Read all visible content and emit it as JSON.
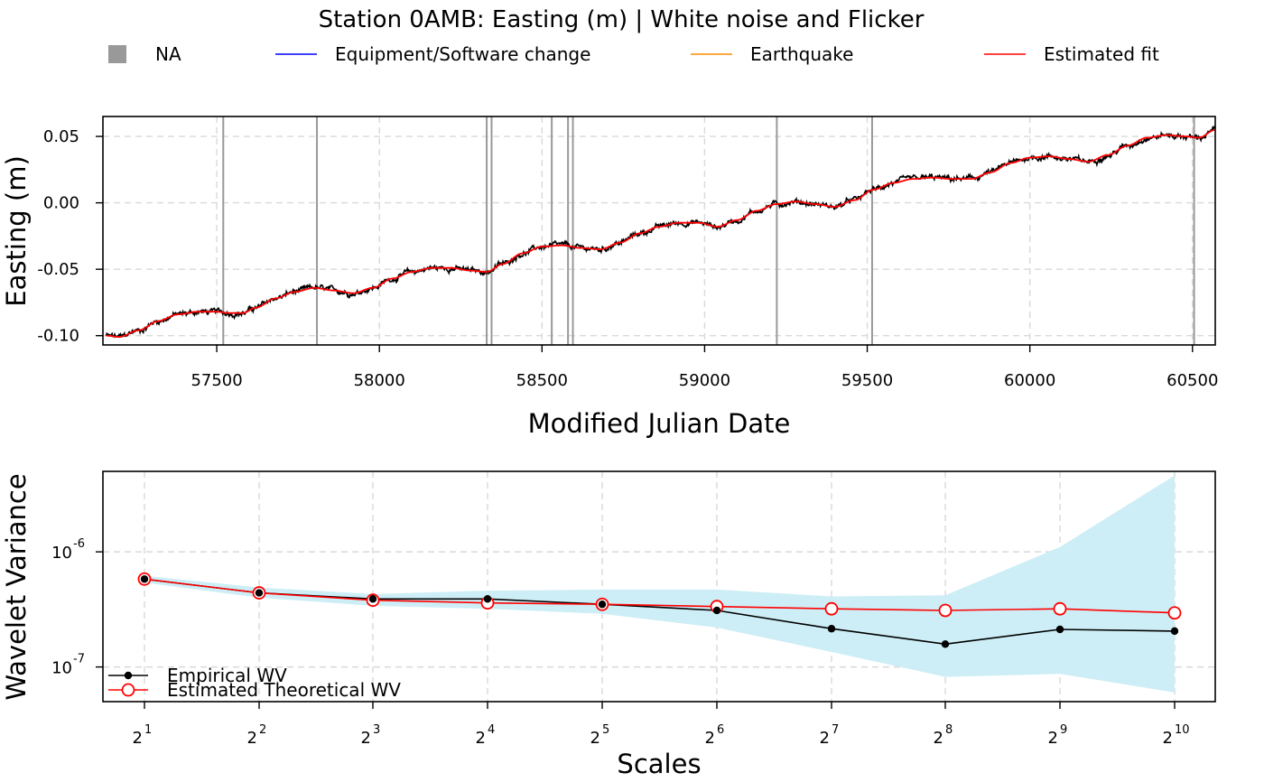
{
  "title": "Station 0AMB: Easting (m) | White noise and Flicker",
  "legend_top": [
    {
      "label": "NA",
      "color": "#999999",
      "symbol": "square"
    },
    {
      "label": "Equipment/Software change",
      "color": "#0000ff",
      "symbol": "line"
    },
    {
      "label": "Earthquake",
      "color": "#ff8c00",
      "symbol": "line"
    },
    {
      "label": "Estimated fit",
      "color": "#ff0000",
      "symbol": "line"
    }
  ],
  "legend_bottom": [
    {
      "label": "Empirical WV",
      "color": "#000000",
      "symbol": "filled-circle"
    },
    {
      "label": "Estimated Theoretical WV",
      "color": "#ff0000",
      "symbol": "open-circle"
    }
  ],
  "colors": {
    "series": "#000000",
    "fit": "#ff0000",
    "na_lines": "#999999",
    "ci_band": "#cdeef6",
    "grid": "#d9d9d9"
  },
  "chart_data": [
    {
      "type": "line",
      "xlabel": "Modified Julian Date",
      "ylabel": "Easting (m)",
      "xlim": [
        57150,
        60570
      ],
      "ylim": [
        -0.107,
        0.065
      ],
      "xticks": [
        57500,
        58000,
        58500,
        59000,
        59500,
        60000,
        60500
      ],
      "xtick_labels": [
        "57500",
        "58000",
        "58500",
        "59000",
        "59500",
        "60000",
        "60500"
      ],
      "yticks": [
        -0.1,
        -0.05,
        0.0,
        0.05
      ],
      "ytick_labels": [
        "-0.10",
        "-0.05",
        "0.00",
        "0.05"
      ],
      "grid": true,
      "na_markers_x": [
        57520,
        57808,
        58330,
        58345,
        58530,
        58580,
        58595,
        59222,
        59515,
        60505
      ],
      "fit_points": {
        "x": [
          57160,
          57200,
          57260,
          57320,
          57380,
          57440,
          57500,
          57540,
          57580,
          57620,
          57680,
          57740,
          57800,
          57860,
          57920,
          57980,
          58040,
          58100,
          58160,
          58220,
          58280,
          58330,
          58380,
          58440,
          58500,
          58560,
          58620,
          58680,
          58740,
          58800,
          58860,
          58920,
          58980,
          59040,
          59100,
          59160,
          59220,
          59280,
          59340,
          59400,
          59460,
          59520,
          59580,
          59640,
          59700,
          59760,
          59820,
          59880,
          59940,
          60000,
          60060,
          60120,
          60180,
          60240,
          60300,
          60360,
          60420,
          60480,
          60520,
          60570
        ],
        "y": [
          -0.1,
          -0.101,
          -0.096,
          -0.089,
          -0.084,
          -0.082,
          -0.082,
          -0.083,
          -0.083,
          -0.079,
          -0.072,
          -0.067,
          -0.064,
          -0.066,
          -0.068,
          -0.064,
          -0.057,
          -0.052,
          -0.049,
          -0.049,
          -0.051,
          -0.052,
          -0.046,
          -0.038,
          -0.033,
          -0.032,
          -0.034,
          -0.035,
          -0.03,
          -0.023,
          -0.018,
          -0.015,
          -0.015,
          -0.018,
          -0.013,
          -0.006,
          -0.001,
          0.001,
          -0.001,
          -0.003,
          0.002,
          0.01,
          0.015,
          0.018,
          0.019,
          0.018,
          0.018,
          0.023,
          0.03,
          0.034,
          0.035,
          0.033,
          0.031,
          0.036,
          0.043,
          0.049,
          0.051,
          0.05,
          0.049,
          0.055
        ]
      },
      "series_noise_amplitude": 0.0022
    },
    {
      "type": "line",
      "xlabel": "Scales",
      "ylabel": "Wavelet Variance",
      "scale": "log10",
      "ylim": [
        5e-08,
        5e-06
      ],
      "x": [
        1,
        2,
        3,
        4,
        5,
        6,
        7,
        8,
        9,
        10
      ],
      "xtick_base": "2",
      "xtick_exponents": [
        "1",
        "2",
        "3",
        "4",
        "5",
        "6",
        "7",
        "8",
        "9",
        "10"
      ],
      "ytick_base": "10",
      "ytick_exponents": [
        "-6",
        "-7"
      ],
      "yticks": [
        1e-06,
        1e-07
      ],
      "grid": true,
      "series": [
        {
          "name": "Empirical WV",
          "values": [
            5.8e-07,
            4.4e-07,
            3.9e-07,
            3.9e-07,
            3.5e-07,
            3.1e-07,
            2.15e-07,
            1.58e-07,
            2.12e-07,
            2.05e-07
          ]
        },
        {
          "name": "Estimated Theoretical WV",
          "values": [
            5.8e-07,
            4.4e-07,
            3.8e-07,
            3.6e-07,
            3.5e-07,
            3.35e-07,
            3.2e-07,
            3.1e-07,
            3.2e-07,
            2.95e-07
          ]
        }
      ],
      "ci_upper": [
        6.2e-07,
        4.9e-07,
        4.3e-07,
        4.6e-07,
        4.7e-07,
        4.7e-07,
        4.1e-07,
        4.2e-07,
        1.1e-06,
        4.6e-06
      ],
      "ci_lower": [
        5.4e-07,
        4e-07,
        3.4e-07,
        3.2e-07,
        2.9e-07,
        2.2e-07,
        1.35e-07,
        8.2e-08,
        8.7e-08,
        6e-08
      ]
    }
  ]
}
